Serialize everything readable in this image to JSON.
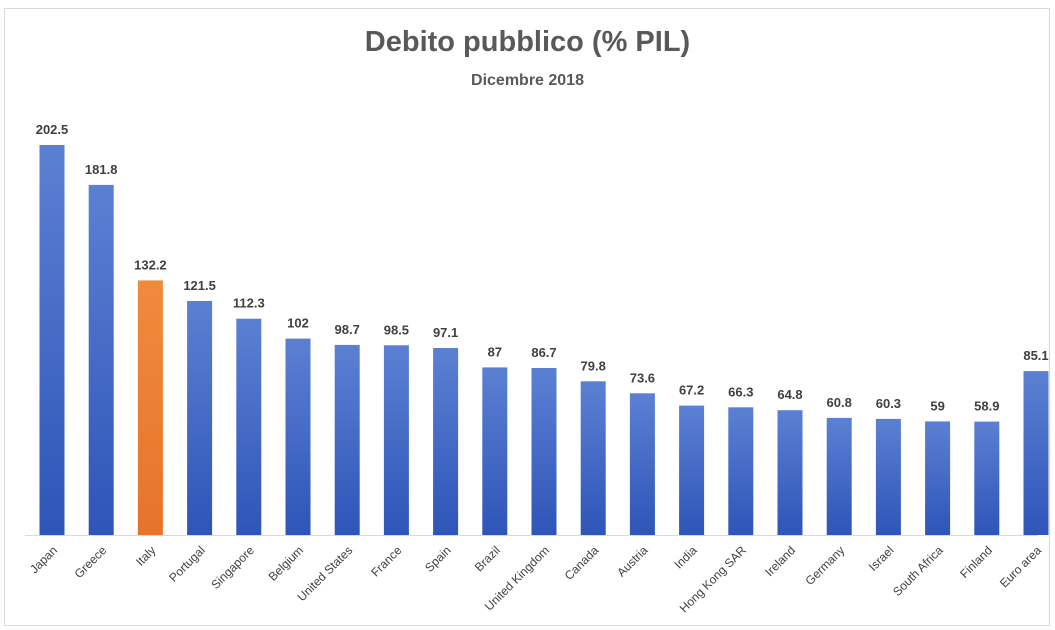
{
  "chart_data": {
    "type": "bar",
    "title": "Debito pubblico (% PIL)",
    "subtitle": "Dicembre 2018",
    "xlabel": "",
    "ylabel": "",
    "ylim": [
      0,
      210
    ],
    "grid": false,
    "legend": "none",
    "categories": [
      "Japan",
      "Greece",
      "Italy",
      "Portugal",
      "Singapore",
      "Belgium",
      "United States",
      "France",
      "Spain",
      "Brazil",
      "United Kingdom",
      "Canada",
      "Austria",
      "India",
      "Hong Kong SAR",
      "Ireland",
      "Germany",
      "Israel",
      "South Africa",
      "Finland",
      "Euro area"
    ],
    "values": [
      202.5,
      181.8,
      132.2,
      121.5,
      112.3,
      102,
      98.7,
      98.5,
      97.1,
      87,
      86.7,
      79.8,
      73.6,
      67.2,
      66.3,
      64.8,
      60.8,
      60.3,
      59,
      58.9,
      85.1
    ],
    "value_labels": [
      "202.5",
      "181.8",
      "132.2",
      "121.5",
      "112.3",
      "102",
      "98.7",
      "98.5",
      "97.1",
      "87",
      "86.7",
      "79.8",
      "73.6",
      "67.2",
      "66.3",
      "64.8",
      "60.8",
      "60.3",
      "59",
      "58.9",
      "85.1"
    ],
    "highlight_category": "Italy",
    "colors": {
      "bar_top": "#5b80d3",
      "bar_bottom": "#2e55b8",
      "highlight_top": "#f08a3c",
      "highlight_bottom": "#e6742a",
      "axis": "#d9d9d9",
      "text": "#404040",
      "title": "#595959"
    }
  }
}
